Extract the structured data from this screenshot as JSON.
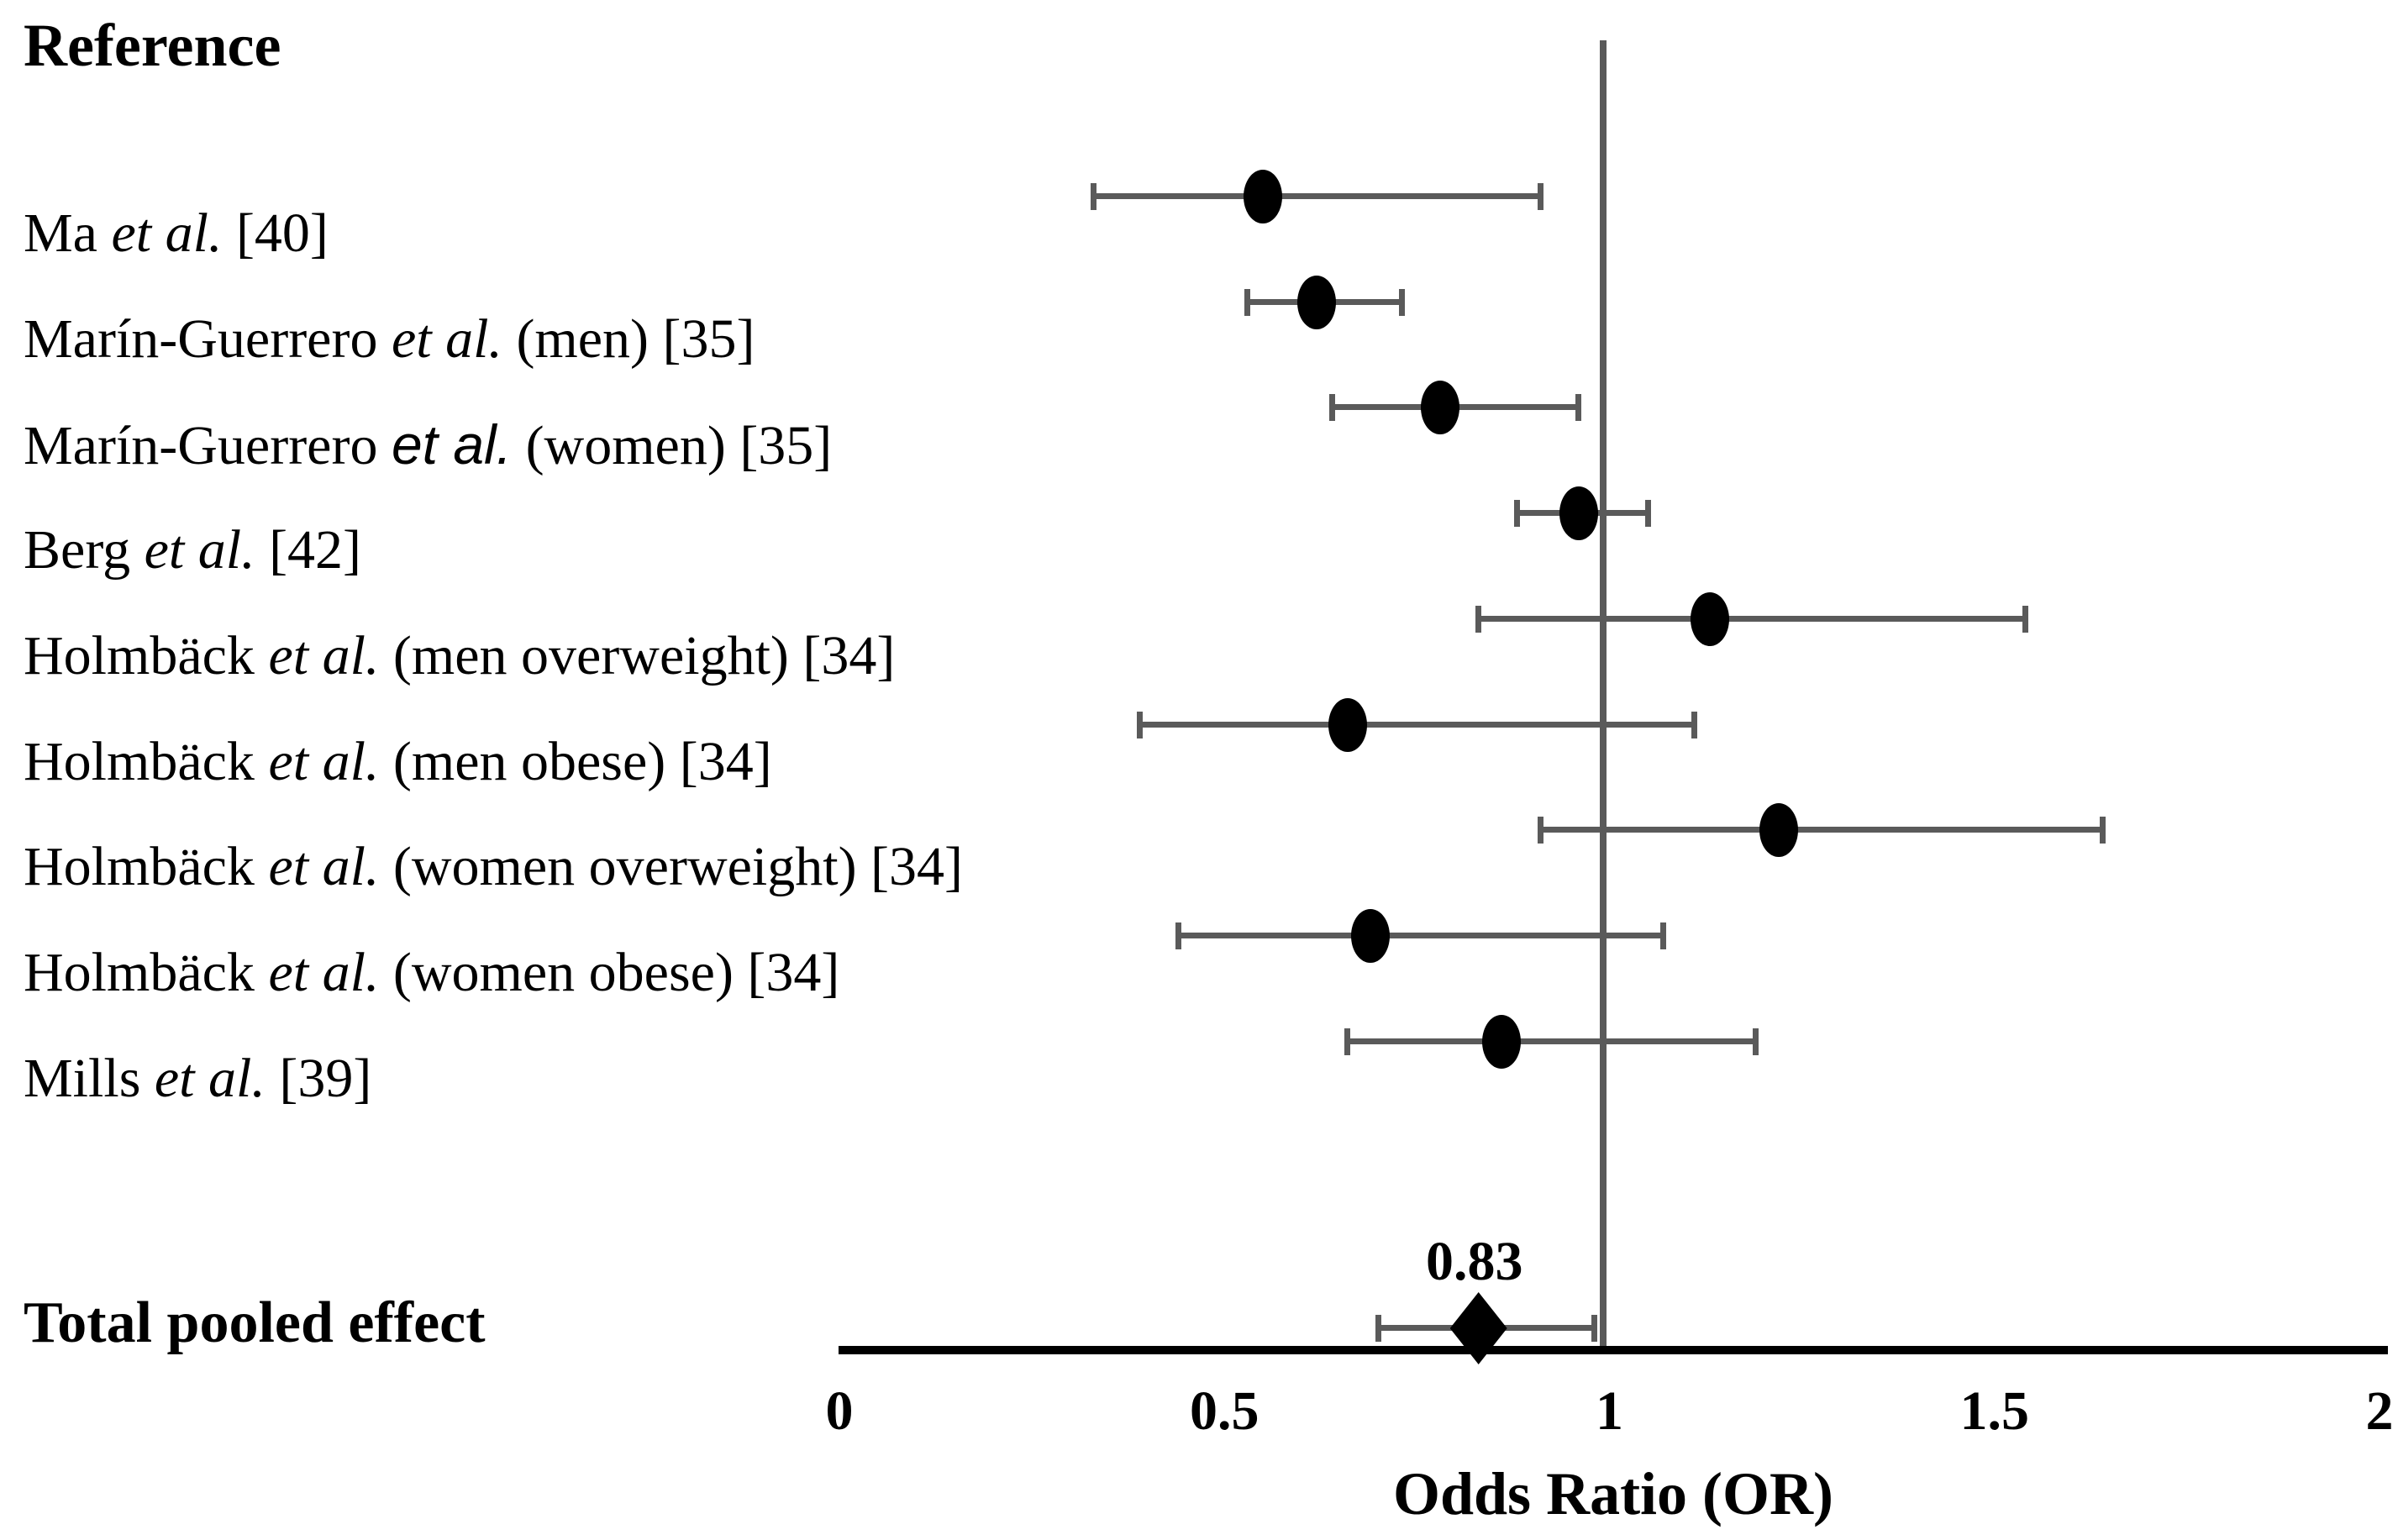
{
  "chart_data": {
    "type": "scatter",
    "subtype": "forest-plot",
    "column_header": "Reference",
    "xlabel": "Odds Ratio (OR)",
    "xlim": [
      0,
      2
    ],
    "x_ticks": [
      {
        "label": "0",
        "value": 0
      },
      {
        "label": "0.5",
        "value": 0.5
      },
      {
        "label": "1",
        "value": 1
      },
      {
        "label": "1.5",
        "value": 1.5
      },
      {
        "label": "2",
        "value": 2
      }
    ],
    "reference_line_value": 1,
    "grid": false,
    "legend": false,
    "studies": [
      {
        "label_text": "Ma et al. [40]",
        "label_parts": [
          "Ma ",
          {
            "i": "et al."
          },
          " [40]"
        ],
        "or": 0.55,
        "ci_low": 0.33,
        "ci_high": 0.91
      },
      {
        "label_text": "Marín-Guerrero et al. (men) [35]",
        "label_parts": [
          "Marín-Guerrero ",
          {
            "i": "et al."
          },
          " (men) [35]"
        ],
        "or": 0.62,
        "ci_low": 0.53,
        "ci_high": 0.73
      },
      {
        "label_text": "Marín-Guerrero et al. (women) [35]",
        "label_parts": [
          "Marín-Guerrero ",
          {
            "s": "et al."
          },
          " (women) [35]"
        ],
        "or": 0.78,
        "ci_low": 0.64,
        "ci_high": 0.96
      },
      {
        "label_text": "Berg et al. [42]",
        "label_parts": [
          "Berg ",
          {
            "i": "et al."
          },
          " [42]"
        ],
        "or": 0.96,
        "ci_low": 0.88,
        "ci_high": 1.05
      },
      {
        "label_text": "Holmbäck et al. (men overweight) [34]",
        "label_parts": [
          "Holmbäck ",
          {
            "i": "et al."
          },
          " (men overweight) [34]"
        ],
        "or": 1.13,
        "ci_low": 0.83,
        "ci_high": 1.54
      },
      {
        "label_text": "Holmbäck et al. (men obese) [34]",
        "label_parts": [
          "Holmbäck ",
          {
            "i": "et al."
          },
          " (men obese) [34]"
        ],
        "or": 0.66,
        "ci_low": 0.39,
        "ci_high": 1.11
      },
      {
        "label_text": "Holmbäck et al. (women overweight) [34]",
        "label_parts": [
          "Holmbäck ",
          {
            "i": "et al."
          },
          " (women overweight) [34]"
        ],
        "or": 1.22,
        "ci_low": 0.91,
        "ci_high": 1.64
      },
      {
        "label_text": "Holmbäck et al. (women obese) [34]",
        "label_parts": [
          "Holmbäck ",
          {
            "i": "et al."
          },
          " (women obese) [34]"
        ],
        "or": 0.69,
        "ci_low": 0.44,
        "ci_high": 1.07
      },
      {
        "label_text": "Mills et al. [39]",
        "label_parts": [
          "Mills ",
          {
            "i": "et al."
          },
          " [39]"
        ],
        "or": 0.86,
        "ci_low": 0.66,
        "ci_high": 1.19
      }
    ],
    "pooled": {
      "label": "Total pooled effect",
      "value_label": "0.83",
      "or": 0.83,
      "ci_low": 0.7,
      "ci_high": 0.98,
      "marker": "diamond"
    }
  },
  "colors": {
    "background": "#ffffff",
    "text": "#000000",
    "marker": "#000000",
    "axis": "#000000",
    "ci_line": "#5a5a5a",
    "reference_line": "#5a5a5a"
  }
}
